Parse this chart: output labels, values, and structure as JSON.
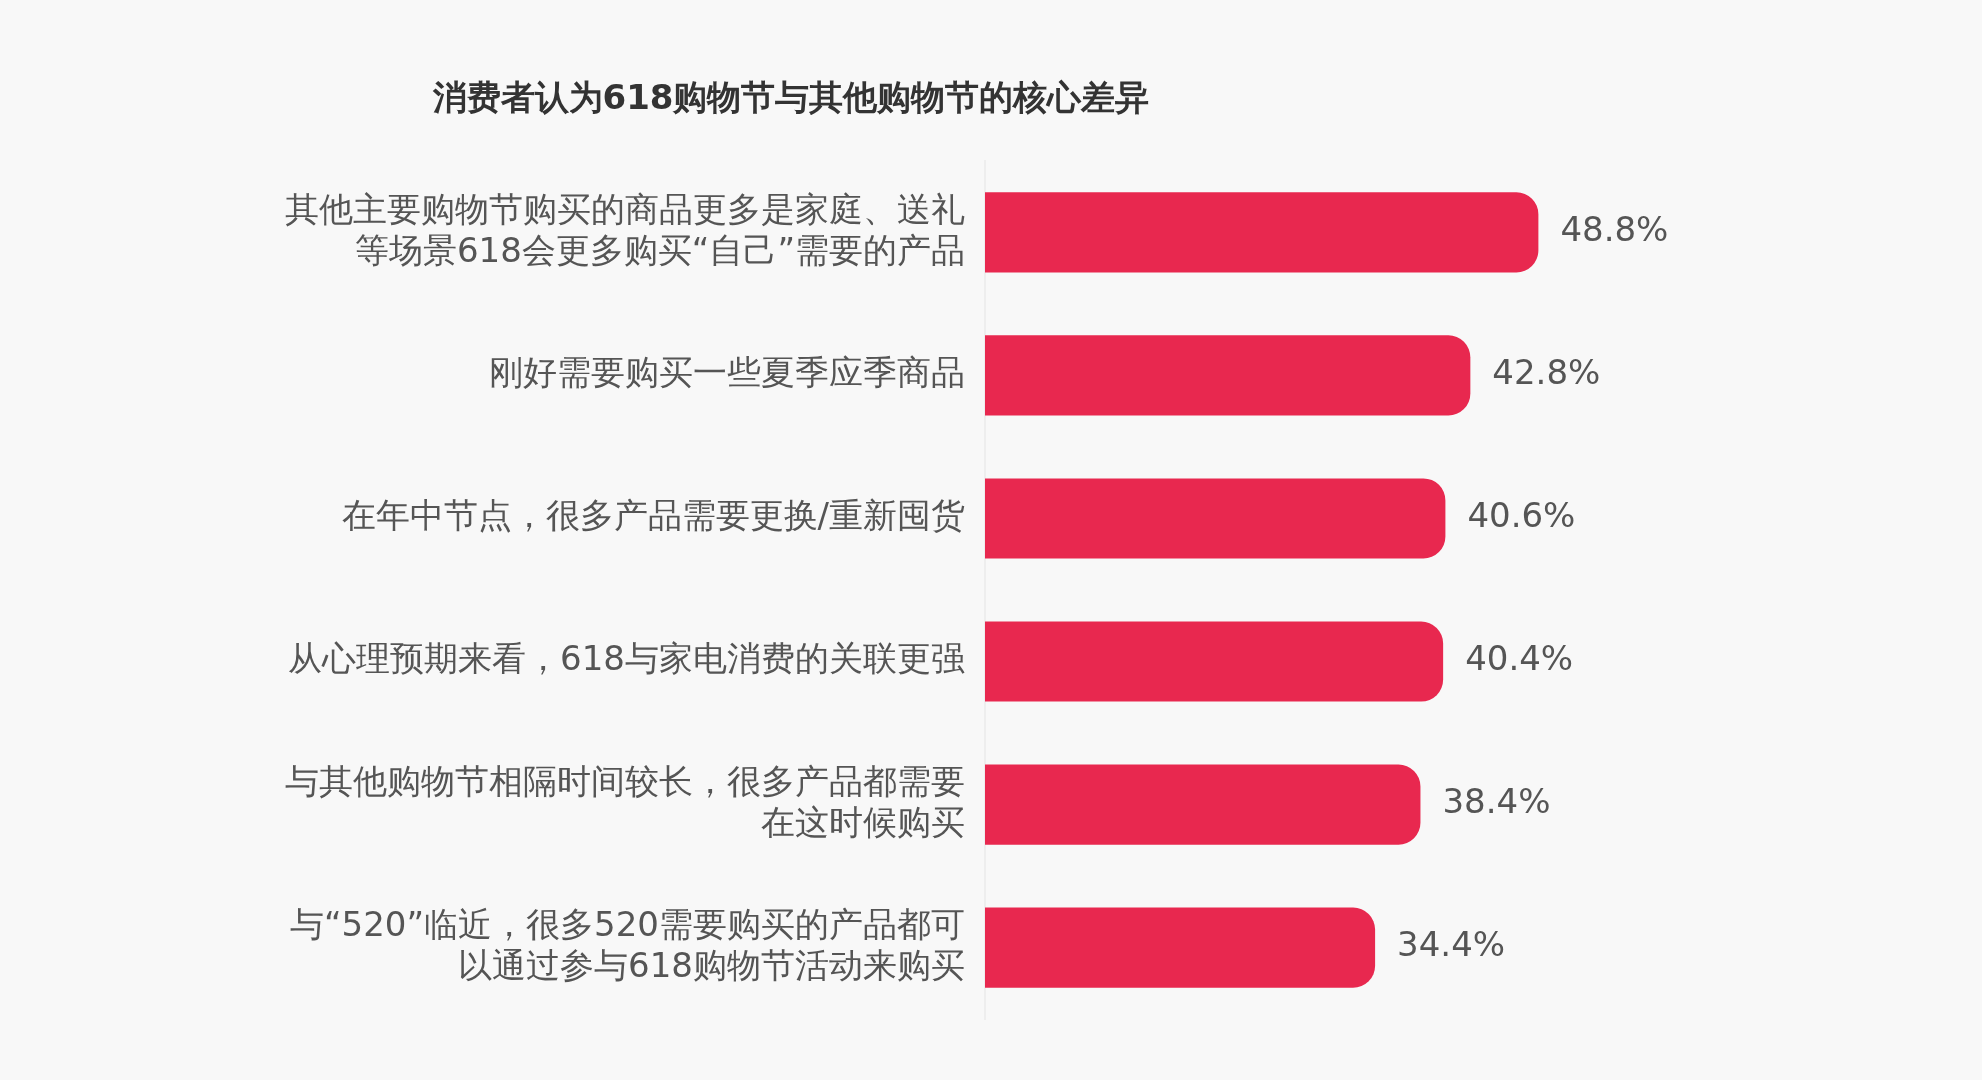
{
  "chart_data": {
    "type": "bar",
    "orientation": "horizontal",
    "title": "消费者认为618购物节与其他购物节的核心差异",
    "categories": [
      "其他主要购物节购买的商品更多是家庭、送礼等场景618会更多购买“自己”需要的产品",
      "刚好需要购买一些夏季应季商品",
      "在年中节点，很多产品需要更换/重新囤货",
      "从心理预期来看，618与家电消费的关联更强",
      "与其他购物节相隔时间较长，很多产品都需要在这时候购买",
      "与“520”临近，很多520需要购买的产品都可以通过参与618购物节活动来购买"
    ],
    "values": [
      48.8,
      42.8,
      40.6,
      40.4,
      38.4,
      34.4
    ],
    "value_labels": [
      "48.8%",
      "42.8%",
      "40.6%",
      "40.4%",
      "38.4%",
      "34.4%"
    ],
    "color": "#e8284f",
    "tick_labels": "y",
    "legend": false
  }
}
